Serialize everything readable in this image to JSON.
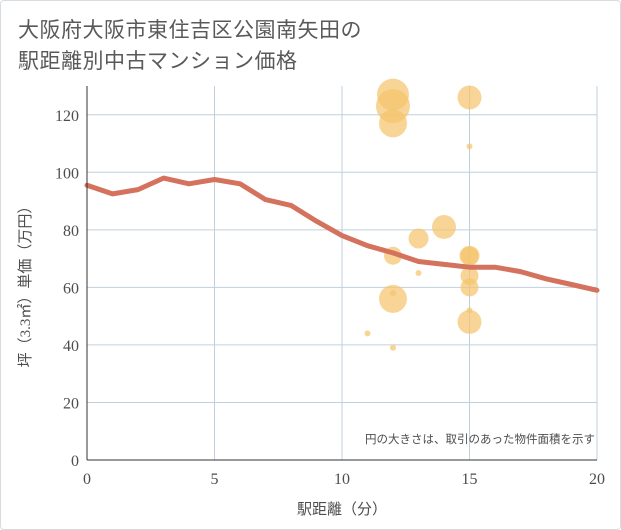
{
  "title_lines": [
    "大阪府大阪市東住吉区公園南矢田の",
    "駅距離別中古マンション価格"
  ],
  "colors": {
    "line": "#d4725e",
    "bubble": "#f5c56e",
    "grid": "#bfd0dc",
    "axis_text": "#4d4d4d"
  },
  "chart_data": {
    "type": "scatter",
    "title": "大阪府大阪市東住吉区公園南矢田の 駅距離別中古マンション価格",
    "xlabel": "駅距離（分）",
    "ylabel": "坪（3.3㎡）単価（万円）",
    "xlim": [
      0,
      20
    ],
    "ylim": [
      0,
      130
    ],
    "xticks": [
      0,
      5,
      10,
      15,
      20
    ],
    "yticks": [
      0,
      20,
      40,
      60,
      80,
      100,
      120
    ],
    "grid": true,
    "note": "円の大きさは、取引のあった物件面積を示す",
    "line": {
      "x": [
        0,
        1,
        2,
        3,
        4,
        5,
        6,
        7,
        8,
        9,
        10,
        11,
        12,
        13,
        14,
        15,
        16,
        17,
        18,
        19,
        20
      ],
      "y": [
        95.5,
        92.5,
        94,
        98,
        96,
        97.5,
        96,
        90.5,
        88.5,
        83,
        78,
        74.5,
        72,
        69,
        68,
        67,
        67,
        65.5,
        63,
        61,
        59
      ]
    },
    "points": [
      {
        "x": 12,
        "y": 127,
        "size": 16
      },
      {
        "x": 12,
        "y": 123,
        "size": 17
      },
      {
        "x": 12,
        "y": 117,
        "size": 14
      },
      {
        "x": 12,
        "y": 71,
        "size": 9
      },
      {
        "x": 12,
        "y": 58,
        "size": 3
      },
      {
        "x": 12,
        "y": 56,
        "size": 14
      },
      {
        "x": 12,
        "y": 39,
        "size": 3
      },
      {
        "x": 11,
        "y": 44,
        "size": 3
      },
      {
        "x": 13,
        "y": 77,
        "size": 10
      },
      {
        "x": 13,
        "y": 65,
        "size": 3
      },
      {
        "x": 14,
        "y": 81,
        "size": 12
      },
      {
        "x": 15,
        "y": 126,
        "size": 12
      },
      {
        "x": 15,
        "y": 109,
        "size": 3
      },
      {
        "x": 15,
        "y": 71,
        "size": 10
      },
      {
        "x": 15,
        "y": 71,
        "size": 9
      },
      {
        "x": 15,
        "y": 64,
        "size": 9
      },
      {
        "x": 15,
        "y": 60,
        "size": 9
      },
      {
        "x": 15,
        "y": 52,
        "size": 3
      },
      {
        "x": 15,
        "y": 48,
        "size": 12
      }
    ]
  }
}
